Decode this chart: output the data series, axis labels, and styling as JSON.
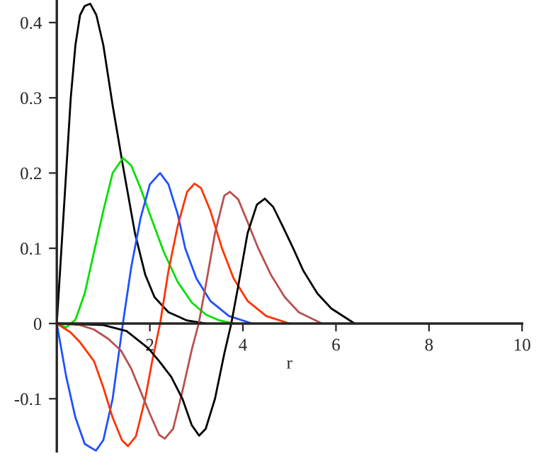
{
  "chart_data": {
    "type": "line",
    "xlabel": "r",
    "xlim": [
      0,
      10
    ],
    "xticks": [
      2,
      4,
      6,
      8,
      10
    ],
    "ylim": [
      -0.17,
      0.43
    ],
    "yticks": [
      -0.1,
      0,
      0.1,
      0.2,
      0.3,
      0.4
    ],
    "grid": false,
    "legend": false,
    "marker": "none",
    "line_style": "solid",
    "series": [
      {
        "color": "#000000",
        "x": [
          0,
          0.1,
          0.2,
          0.3,
          0.4,
          0.5,
          0.6,
          0.72,
          0.85,
          1.0,
          1.2,
          1.42,
          1.68,
          1.9,
          2.1,
          2.4,
          2.8,
          3.2
        ],
        "values": [
          0,
          0.1,
          0.2,
          0.3,
          0.37,
          0.41,
          0.422,
          0.425,
          0.41,
          0.37,
          0.29,
          0.21,
          0.12,
          0.065,
          0.035,
          0.015,
          0.004,
          0
        ]
      },
      {
        "color": "#00e000",
        "x": [
          0,
          0.2,
          0.4,
          0.6,
          0.8,
          1.0,
          1.2,
          1.42,
          1.6,
          1.8,
          2.0,
          2.3,
          2.6,
          2.9,
          3.2,
          3.5,
          3.8
        ],
        "values": [
          0,
          -0.005,
          0.005,
          0.04,
          0.095,
          0.15,
          0.2,
          0.22,
          0.21,
          0.18,
          0.145,
          0.095,
          0.055,
          0.028,
          0.012,
          0.004,
          0
        ]
      },
      {
        "color": "#2050ff",
        "x": [
          0,
          0.2,
          0.4,
          0.6,
          0.84,
          1.0,
          1.2,
          1.42,
          1.6,
          1.8,
          2.0,
          2.22,
          2.4,
          2.6,
          2.76,
          3.0,
          3.3,
          3.7,
          4.2
        ],
        "values": [
          0,
          -0.07,
          -0.125,
          -0.16,
          -0.169,
          -0.155,
          -0.1,
          0,
          0.075,
          0.14,
          0.185,
          0.2,
          0.185,
          0.145,
          0.1,
          0.06,
          0.03,
          0.01,
          0
        ]
      },
      {
        "color": "#ff3300",
        "x": [
          0,
          0.3,
          0.5,
          0.8,
          1.0,
          1.2,
          1.4,
          1.53,
          1.7,
          1.9,
          2.05,
          2.22,
          2.4,
          2.6,
          2.8,
          2.96,
          3.1,
          3.3,
          3.55,
          3.8,
          4.1,
          4.5,
          5.0
        ],
        "values": [
          0,
          -0.012,
          -0.025,
          -0.05,
          -0.085,
          -0.125,
          -0.155,
          -0.163,
          -0.15,
          -0.1,
          -0.05,
          0,
          0.07,
          0.13,
          0.175,
          0.186,
          0.18,
          0.15,
          0.1,
          0.06,
          0.03,
          0.01,
          0
        ]
      },
      {
        "color": "#b85050",
        "x": [
          0,
          0.5,
          0.8,
          1.1,
          1.38,
          1.6,
          1.8,
          2.0,
          2.2,
          2.32,
          2.5,
          2.7,
          2.9,
          3.05,
          3.2,
          3.4,
          3.6,
          3.72,
          3.9,
          4.1,
          4.33,
          4.6,
          4.9,
          5.2,
          5.7
        ],
        "values": [
          0,
          -0.002,
          -0.008,
          -0.02,
          -0.036,
          -0.06,
          -0.09,
          -0.12,
          -0.148,
          -0.153,
          -0.14,
          -0.09,
          -0.035,
          0,
          0.05,
          0.12,
          0.17,
          0.175,
          0.165,
          0.135,
          0.1,
          0.065,
          0.035,
          0.015,
          0
        ]
      },
      {
        "color": "#000000",
        "x": [
          0,
          1.0,
          1.5,
          1.97,
          2.2,
          2.46,
          2.7,
          2.9,
          3.06,
          3.2,
          3.4,
          3.6,
          3.75,
          3.9,
          4.1,
          4.3,
          4.47,
          4.65,
          4.85,
          5.08,
          5.3,
          5.6,
          5.9,
          6.4
        ],
        "values": [
          0,
          -0.002,
          -0.01,
          -0.033,
          -0.05,
          -0.071,
          -0.1,
          -0.135,
          -0.149,
          -0.14,
          -0.1,
          -0.04,
          0,
          0.05,
          0.12,
          0.158,
          0.166,
          0.155,
          0.13,
          0.1,
          0.07,
          0.04,
          0.02,
          0
        ]
      }
    ]
  }
}
